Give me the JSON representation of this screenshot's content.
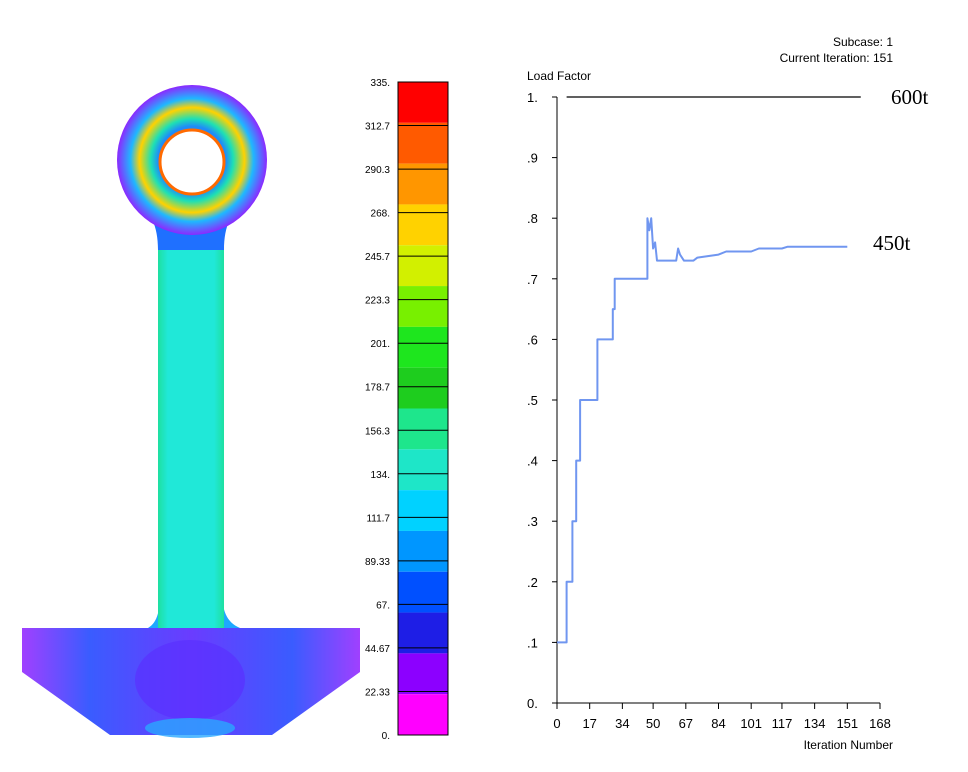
{
  "contour": {
    "legend_labels": [
      "335.",
      "312.7",
      "290.3",
      "268.",
      "245.7",
      "223.3",
      "201.",
      "178.7",
      "156.3",
      "134.",
      "111.7",
      "89.33",
      "67.",
      "44.67",
      "22.33",
      "0."
    ],
    "legend_colors": [
      "#ff0000",
      "#ff5a00",
      "#ff9600",
      "#ffd200",
      "#d2f000",
      "#78f000",
      "#1ee61e",
      "#1ecd1e",
      "#1ee68c",
      "#1ee6c8",
      "#00d2ff",
      "#0096ff",
      "#0050ff",
      "#1e1ee6",
      "#8c00ff",
      "#ff00ff"
    ]
  },
  "chart_header": {
    "subcase": "Subcase: 1",
    "current_iteration": "Current Iteration: 151"
  },
  "annotations": {
    "upper": "600t",
    "lower": "450t"
  },
  "chart_data": {
    "type": "line",
    "ylabel": "Load Factor",
    "xlabel": "Iteration Number",
    "xlim": [
      0,
      168
    ],
    "ylim": [
      0,
      1
    ],
    "x_ticks": [
      "0",
      "17",
      "34",
      "50",
      "67",
      "84",
      "101",
      "117",
      "134",
      "151",
      "168"
    ],
    "y_ticks": [
      "0.",
      ".1",
      ".2",
      ".3",
      ".4",
      ".5",
      ".6",
      ".7",
      ".8",
      ".9",
      "1."
    ],
    "reference_line": {
      "y": 1.0,
      "x": [
        5,
        158
      ]
    },
    "series": [
      {
        "color": "#7096f0",
        "points": [
          [
            0,
            0.1
          ],
          [
            5,
            0.1
          ],
          [
            5,
            0.2
          ],
          [
            8,
            0.2
          ],
          [
            8,
            0.3
          ],
          [
            10,
            0.3
          ],
          [
            10,
            0.4
          ],
          [
            12,
            0.4
          ],
          [
            12,
            0.5
          ],
          [
            21,
            0.5
          ],
          [
            21,
            0.6
          ],
          [
            29,
            0.6
          ],
          [
            29,
            0.65
          ],
          [
            30,
            0.65
          ],
          [
            30,
            0.7
          ],
          [
            47,
            0.7
          ],
          [
            47,
            0.8
          ],
          [
            48,
            0.78
          ],
          [
            49,
            0.8
          ],
          [
            50,
            0.75
          ],
          [
            51,
            0.76
          ],
          [
            52,
            0.73
          ],
          [
            62,
            0.73
          ],
          [
            63,
            0.75
          ],
          [
            64,
            0.74
          ],
          [
            66,
            0.73
          ],
          [
            71,
            0.73
          ],
          [
            73,
            0.735
          ],
          [
            84,
            0.74
          ],
          [
            88,
            0.745
          ],
          [
            101,
            0.745
          ],
          [
            105,
            0.75
          ],
          [
            117,
            0.75
          ],
          [
            120,
            0.753
          ],
          [
            151,
            0.753
          ]
        ]
      }
    ]
  }
}
